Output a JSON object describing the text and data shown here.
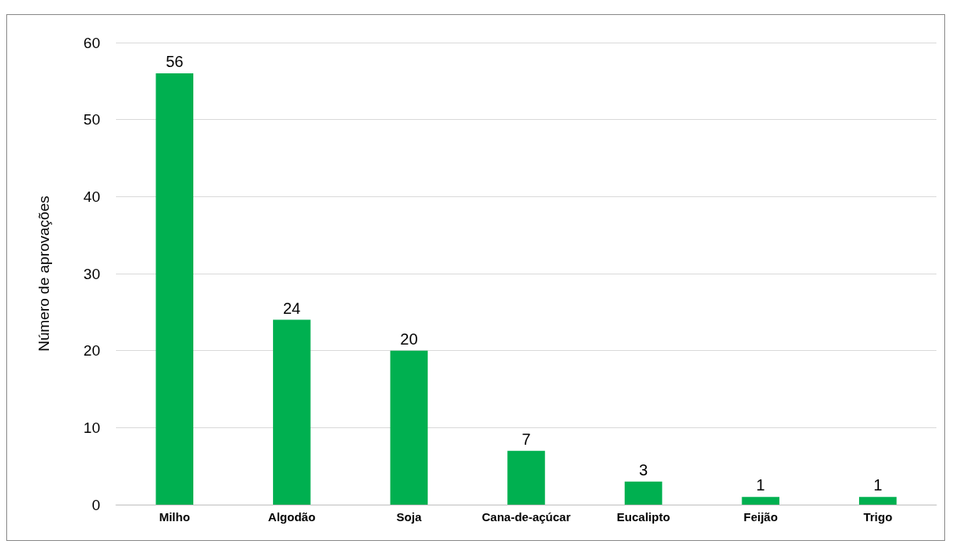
{
  "chart_data": {
    "type": "bar",
    "ylabel": "Número de aprovações",
    "categories": [
      "Milho",
      "Algodão",
      "Soja",
      "Cana-de-açúcar",
      "Eucalipto",
      "Feijão",
      "Trigo"
    ],
    "values": [
      56,
      24,
      20,
      7,
      3,
      1,
      1
    ],
    "color": "#00b050",
    "ylim": [
      0,
      60
    ],
    "yticks": [
      0,
      10,
      20,
      30,
      40,
      50,
      60
    ],
    "grid": "y",
    "data_labels": true
  }
}
